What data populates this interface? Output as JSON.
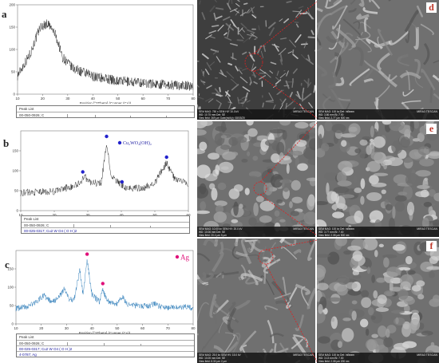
{
  "figure": {
    "panels": [
      {
        "letter": "a"
      },
      {
        "letter": "b",
        "legend": "Cu₂WO₄(OH)₂"
      },
      {
        "letter": "c",
        "legend": "Ag"
      }
    ],
    "sem_letters": [
      "d",
      "e",
      "f"
    ],
    "peak_lists": [
      [
        "Peak List",
        "00-050-0926; C"
      ],
      [
        "Peak List",
        "00-050-0926; C",
        "00-025-0317; Cu2 W O4 ( O H )2"
      ],
      [
        "Peak List",
        "00-050-0926; C",
        "00-025-0317; Cu2 W O4 ( O H )2",
        "4-0787; Ag"
      ]
    ],
    "sem_info": {
      "top_left": [
        "SEM MAG: 750 x",
        "WD: 10.75 mm",
        "View field: 369 μm",
        "SEM HV: 10.0 kV",
        "Det: SE",
        "Date(m/d/y): 08/03/20"
      ],
      "top_right": [
        "SEM MAG: 100 kx",
        "WD: 3.86 mm",
        "View field: 2.77 μm",
        "Det: InBeam",
        "BI: 7.00",
        "500 nm"
      ],
      "mid_left": [
        "SEM MAG: 10.00 kx",
        "WD: 10.06 mm",
        "View field: 20.4 μm",
        "SEM HV: 20.0 kV",
        "Det: SE",
        "5 μm"
      ],
      "mid_right": [
        "SEM MAG: 100 kx",
        "WD: 3.77 mm",
        "View field: 2.08 μm",
        "Det: InBeam",
        "BI: 7.00",
        "500 nm"
      ],
      "bot_left": [
        "SEM MAG: 25.0 kx",
        "WD: 10.05 mm",
        "View field: 8.30 μm",
        "SEM HV: 15.0 kV",
        "Det: SE",
        "2 μm"
      ],
      "bot_right": [
        "SEM MAG: 100 kx",
        "WD: 3.13 mm",
        "View field: 2.08 μm",
        "Det: InBeam",
        "BI: 7.00",
        "200 nm"
      ],
      "brand": "MIRA3 TESCAN"
    }
  },
  "chart_data": [
    {
      "type": "line",
      "title": "",
      "xlabel": "Position [°2Theta] (Copper (Cu))",
      "ylabel": "",
      "xlim": [
        10,
        80
      ],
      "ylim": [
        0,
        200
      ],
      "x_ticks": [
        10,
        20,
        30,
        40,
        50,
        60,
        70,
        80
      ],
      "y_ticks": [
        0,
        50,
        100,
        150,
        200
      ],
      "series": [
        {
          "color": "#222222",
          "profile": [
            [
              10,
              42
            ],
            [
              15,
              90
            ],
            [
              19,
              150
            ],
            [
              22,
              158
            ],
            [
              25,
              135
            ],
            [
              28,
              82
            ],
            [
              32,
              58
            ],
            [
              40,
              40
            ],
            [
              50,
              30
            ],
            [
              60,
              25
            ],
            [
              70,
              21
            ],
            [
              80,
              18
            ]
          ],
          "noise": 11
        }
      ],
      "grid": false
    },
    {
      "type": "line",
      "title": "",
      "xlabel": "Position [°2Theta] (Copper (Cu))",
      "ylabel": "",
      "xlim": [
        10,
        60
      ],
      "ylim": [
        0,
        200
      ],
      "x_ticks": [
        10,
        20,
        30,
        40,
        50,
        60
      ],
      "y_ticks": [
        0,
        50,
        100,
        150
      ],
      "series": [
        {
          "color": "#222222",
          "profile": [
            [
              10,
              45
            ],
            [
              20,
              48
            ],
            [
              27,
              65
            ],
            [
              29,
              85
            ],
            [
              31,
              70
            ],
            [
              34,
              68
            ],
            [
              35.6,
              168
            ],
            [
              37,
              85
            ],
            [
              40,
              65
            ],
            [
              42,
              55
            ],
            [
              47,
              58
            ],
            [
              50,
              70
            ],
            [
              53.5,
              120
            ],
            [
              56,
              78
            ],
            [
              60,
              68
            ],
            [
              62,
              80
            ],
            [
              63.5,
              118
            ],
            [
              65,
              70
            ],
            [
              70,
              52
            ],
            [
              80,
              48
            ]
          ],
          "noise": 9
        }
      ],
      "markers": {
        "color": "#2222cc",
        "points": [
          [
            28.5,
            97
          ],
          [
            35.6,
            186
          ],
          [
            40.2,
            72
          ],
          [
            53.5,
            134
          ],
          [
            63.5,
            128
          ]
        ]
      },
      "grid": false
    },
    {
      "type": "line",
      "title": "",
      "xlabel": "Position [°2Theta] (Copper (Cu))",
      "ylabel": "",
      "xlim": [
        10,
        80
      ],
      "ylim": [
        0,
        200
      ],
      "x_ticks": [
        10,
        20,
        30,
        40,
        50,
        60,
        70,
        80
      ],
      "y_ticks": [
        0,
        50,
        100,
        150
      ],
      "series": [
        {
          "color": "#2a7ab8",
          "profile": [
            [
              10,
              42
            ],
            [
              15,
              48
            ],
            [
              18,
              60
            ],
            [
              21,
              78
            ],
            [
              24,
              58
            ],
            [
              27,
              72
            ],
            [
              29,
              96
            ],
            [
              31,
              68
            ],
            [
              33,
              65
            ],
            [
              35.2,
              148
            ],
            [
              36.5,
              80
            ],
            [
              38.1,
              175
            ],
            [
              40,
              80
            ],
            [
              43,
              60
            ],
            [
              44.3,
              95
            ],
            [
              46,
              62
            ],
            [
              50,
              55
            ],
            [
              52,
              75
            ],
            [
              54,
              52
            ],
            [
              58,
              50
            ],
            [
              62,
              48
            ],
            [
              64.5,
              55
            ],
            [
              67,
              46
            ],
            [
              72,
              44
            ],
            [
              77.5,
              48
            ],
            [
              80,
              42
            ]
          ],
          "noise": 8
        }
      ],
      "markers": {
        "color": "#e0117a",
        "points": [
          [
            38.1,
            190
          ],
          [
            44.3,
            110
          ]
        ]
      },
      "grid": false
    }
  ]
}
